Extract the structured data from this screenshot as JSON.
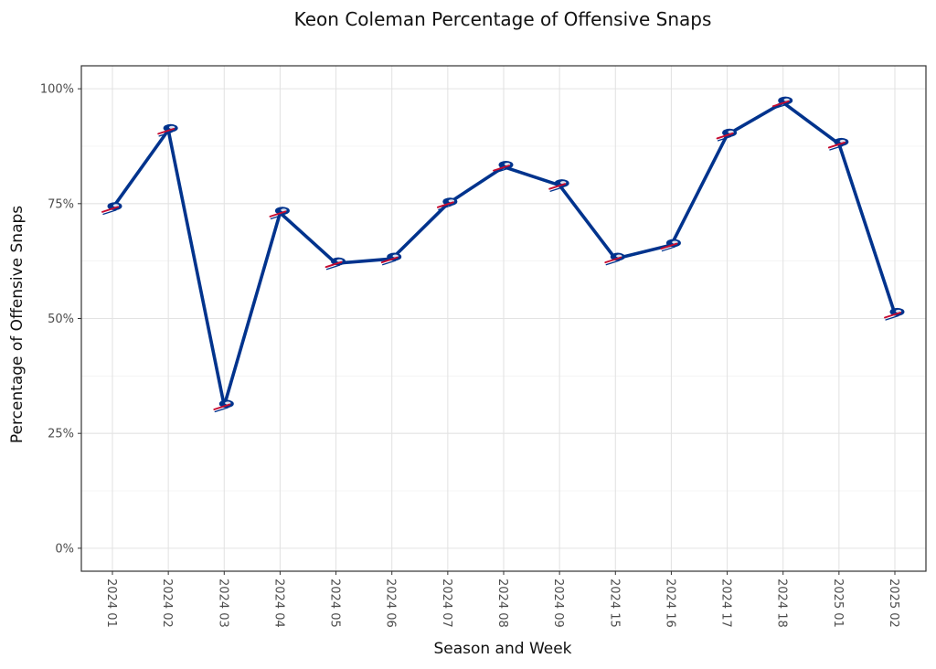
{
  "chart_data": {
    "type": "line",
    "title": "Keon Coleman Percentage of Offensive Snaps",
    "xlabel": "Season and Week",
    "ylabel": "Percentage of Offensive Snaps",
    "categories": [
      "2024 01",
      "2024 02",
      "2024 03",
      "2024 04",
      "2024 05",
      "2024 06",
      "2024 07",
      "2024 08",
      "2024 09",
      "2024 15",
      "2024 16",
      "2024 17",
      "2024 18",
      "2025 01",
      "2025 02"
    ],
    "values": [
      74,
      91,
      31,
      73,
      62,
      63,
      75,
      83,
      79,
      63,
      66,
      90,
      97,
      88,
      51
    ],
    "ylim": [
      -5,
      105
    ],
    "yticks": [
      0,
      25,
      50,
      75,
      100
    ],
    "ytick_labels": [
      "0%",
      "25%",
      "50%",
      "75%",
      "100%"
    ],
    "grid": true,
    "line_color": "#00338D",
    "marker_colors": {
      "primary": "#00338D",
      "accent": "#C60C30",
      "light": "#ffffff"
    },
    "marker_icon": "bills-logo-icon"
  }
}
